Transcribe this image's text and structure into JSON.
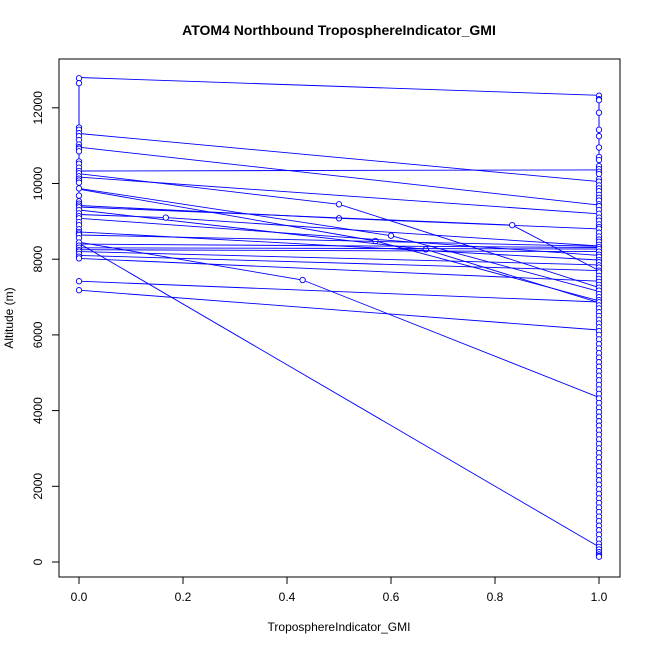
{
  "chart_data": {
    "type": "line",
    "title": "ATOM4 Northbound TroposphereIndicator_GMI",
    "xlabel": "TroposphereIndicator_GMI",
    "ylabel": "Altitude (m)",
    "xlim": [
      0,
      1
    ],
    "ylim": [
      0,
      13000
    ],
    "x_ticks": [
      {
        "value": 0.0,
        "label": "0.0"
      },
      {
        "value": 0.2,
        "label": "0.2"
      },
      {
        "value": 0.4,
        "label": "0.4"
      },
      {
        "value": 0.6,
        "label": "0.6"
      },
      {
        "value": 0.8,
        "label": "0.8"
      },
      {
        "value": 1.0,
        "label": "1.0"
      }
    ],
    "y_ticks": [
      {
        "value": 0,
        "label": "0"
      },
      {
        "value": 2000,
        "label": "2000"
      },
      {
        "value": 4000,
        "label": "4000"
      },
      {
        "value": 6000,
        "label": "6000"
      },
      {
        "value": 8000,
        "label": "8000"
      },
      {
        "value": 10000,
        "label": "10000"
      },
      {
        "value": 12000,
        "label": "12000"
      }
    ],
    "grid": false,
    "legend": "none",
    "colors": {
      "series": "#0000ff",
      "axis": "#000000",
      "background": "#ffffff"
    },
    "series": [
      {
        "x": [
          0,
          1
        ],
        "y": [
          12800,
          12330
        ]
      },
      {
        "x": [
          0,
          1
        ],
        "y": [
          11320,
          10050
        ]
      },
      {
        "x": [
          0,
          1
        ],
        "y": [
          10960,
          9430
        ]
      },
      {
        "x": [
          0,
          1
        ],
        "y": [
          10330,
          10360
        ]
      },
      {
        "x": [
          0,
          0.5,
          1
        ],
        "y": [
          10260,
          9450,
          7250
        ]
      },
      {
        "x": [
          0,
          1
        ],
        "y": [
          10170,
          9200
        ]
      },
      {
        "x": [
          0,
          0.6,
          1
        ],
        "y": [
          9870,
          8620,
          7150
        ]
      },
      {
        "x": [
          0,
          0.57,
          1
        ],
        "y": [
          9850,
          8480,
          6900
        ]
      },
      {
        "x": [
          0,
          0.5,
          1
        ],
        "y": [
          9420,
          9080,
          8800
        ]
      },
      {
        "x": [
          0,
          0.833,
          1
        ],
        "y": [
          9380,
          8900,
          7700
        ]
      },
      {
        "x": [
          0,
          0.667,
          1
        ],
        "y": [
          9300,
          8260,
          6850
        ]
      },
      {
        "x": [
          0,
          0.167,
          1
        ],
        "y": [
          9180,
          9100,
          8350
        ]
      },
      {
        "x": [
          0,
          1
        ],
        "y": [
          9080,
          8100
        ]
      },
      {
        "x": [
          0,
          1
        ],
        "y": [
          8720,
          7980
        ]
      },
      {
        "x": [
          0,
          1
        ],
        "y": [
          8640,
          8340
        ]
      },
      {
        "x": [
          0,
          1
        ],
        "y": [
          8400,
          8310
        ]
      },
      {
        "x": [
          0,
          1
        ],
        "y": [
          8300,
          8270
        ]
      },
      {
        "x": [
          0,
          1
        ],
        "y": [
          8250,
          8200
        ]
      },
      {
        "x": [
          0,
          1
        ],
        "y": [
          8200,
          7850
        ]
      },
      {
        "x": [
          0,
          1
        ],
        "y": [
          8100,
          7700
        ]
      },
      {
        "x": [
          0,
          1
        ],
        "y": [
          8020,
          7420
        ]
      },
      {
        "x": [
          0,
          0.43,
          1
        ],
        "y": [
          8450,
          7450,
          4350
        ]
      },
      {
        "x": [
          0,
          1
        ],
        "y": [
          8420,
          400
        ]
      },
      {
        "x": [
          0,
          1
        ],
        "y": [
          7420,
          6870
        ]
      },
      {
        "x": [
          0,
          1
        ],
        "y": [
          7180,
          6130
        ]
      }
    ],
    "x0_points": [
      12780,
      12650,
      11480,
      11420,
      11330,
      11250,
      11150,
      11030,
      10960,
      10920,
      10850,
      10580,
      10520,
      10420,
      10330,
      10270,
      10190,
      10130,
      10080,
      10020,
      9870,
      9680,
      9530,
      9470,
      9420,
      9370,
      9300,
      9210,
      9140,
      9080,
      8980,
      8900,
      8790,
      8720,
      8680,
      8640,
      8560,
      8440,
      8360,
      8300,
      8240,
      8200,
      8140,
      8070,
      8020,
      7420,
      7180
    ],
    "x1_points": [
      12320,
      12230,
      12200,
      11870,
      11420,
      11250,
      10950,
      10700,
      10620,
      10460,
      10380,
      10310,
      10250,
      10120,
      10050,
      9950,
      9870,
      9800,
      9700,
      9620,
      9550,
      9450,
      9400,
      9300,
      9200,
      9100,
      9020,
      8920,
      8850,
      8800,
      8700,
      8600,
      8520,
      8460,
      8380,
      8320,
      8270,
      8200,
      8120,
      8060,
      7980,
      7920,
      7840,
      7780,
      7700,
      7650,
      7560,
      7480,
      7400,
      7320,
      7250,
      7170,
      7080,
      7000,
      6920,
      6860,
      6780,
      6700,
      6600,
      6500,
      6400,
      6300,
      6200,
      6100,
      6000,
      5880,
      5760,
      5640,
      5520,
      5400,
      5280,
      5160,
      5040,
      4920,
      4800,
      4680,
      4560,
      4440,
      4320,
      4200,
      4080,
      3960,
      3840,
      3720,
      3600,
      3480,
      3360,
      3240,
      3120,
      3000,
      2880,
      2760,
      2640,
      2520,
      2400,
      2280,
      2160,
      2040,
      1920,
      1800,
      1680,
      1560,
      1440,
      1320,
      1200,
      1080,
      960,
      840,
      720,
      600,
      480,
      400,
      330,
      260,
      200,
      160,
      140
    ]
  }
}
